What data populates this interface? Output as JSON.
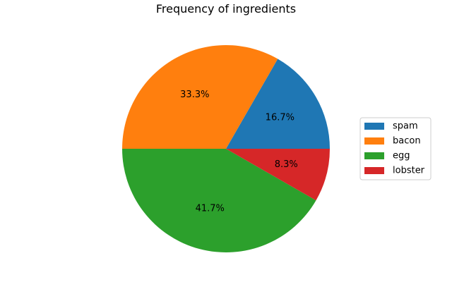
{
  "chart_data": {
    "type": "pie",
    "title": "Frequency of ingredients",
    "categories": [
      "spam",
      "bacon",
      "egg",
      "lobster"
    ],
    "values": [
      16.7,
      33.3,
      41.7,
      8.3
    ],
    "labels": [
      "16.7%",
      "33.3%",
      "41.7%",
      "8.3%"
    ],
    "colors": [
      "#1f77b4",
      "#ff7f0e",
      "#2ca02c",
      "#d62728"
    ],
    "legend": {
      "position": "right",
      "entries": [
        "spam",
        "bacon",
        "egg",
        "lobster"
      ]
    }
  }
}
